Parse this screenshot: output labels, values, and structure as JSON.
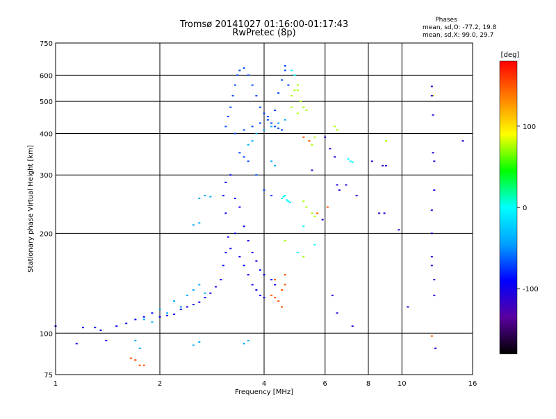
{
  "chart_data": {
    "type": "scatter",
    "title": "Tromsø 20141027 01:16:00-01:17:43",
    "subtitle": "RwPretec (8p)",
    "stats": {
      "heading": "Phases",
      "line1": "mean, sd,O: -77.2, 19.8",
      "line2": "mean, sd,X:  99.0, 29.7"
    },
    "xlabel": "Frequency [MHz]",
    "ylabel": "Stationary phase Virtual Height [km]",
    "x_scale": "log",
    "y_scale": "log",
    "xlim": [
      1,
      16
    ],
    "ylim": [
      75,
      750
    ],
    "x_ticks": [
      1,
      2,
      4,
      6,
      8,
      10,
      16
    ],
    "x_tick_labels": [
      "1",
      "2",
      "4",
      "6",
      "8",
      "10",
      "16"
    ],
    "y_ticks": [
      75,
      100,
      200,
      300,
      400,
      500,
      600,
      750
    ],
    "y_tick_labels": [
      "75",
      "100",
      "200",
      "300",
      "400",
      "500",
      "600",
      "750"
    ],
    "grid": true,
    "colorbar": {
      "label": "[deg]",
      "range": [
        -180,
        180
      ],
      "ticks": [
        -100,
        0,
        100
      ],
      "tick_labels": [
        "-100",
        "0",
        "100"
      ],
      "colormap": "rainbow",
      "colors": [
        "#000000",
        "#5a00a0",
        "#0000ff",
        "#00a0ff",
        "#00ffff",
        "#00ff00",
        "#ffff00",
        "#ff8000",
        "#ff0000"
      ]
    },
    "series": [
      {
        "phase_deg": -95,
        "points": [
          [
            1.0,
            105
          ],
          [
            1.15,
            93
          ],
          [
            1.2,
            104
          ],
          [
            1.3,
            104
          ],
          [
            1.35,
            102
          ],
          [
            1.4,
            95
          ],
          [
            1.5,
            105
          ],
          [
            1.6,
            107
          ],
          [
            1.7,
            110
          ],
          [
            1.8,
            112
          ],
          [
            1.9,
            115
          ],
          [
            2.0,
            112
          ],
          [
            2.1,
            113
          ],
          [
            2.2,
            114
          ],
          [
            2.3,
            118
          ],
          [
            2.4,
            120
          ],
          [
            2.5,
            122
          ],
          [
            2.6,
            124
          ],
          [
            2.7,
            128
          ],
          [
            2.8,
            132
          ],
          [
            2.9,
            138
          ],
          [
            3.0,
            145
          ],
          [
            3.05,
            160
          ],
          [
            3.1,
            175
          ],
          [
            3.15,
            195
          ],
          [
            3.1,
            230
          ],
          [
            3.05,
            260
          ],
          [
            3.1,
            285
          ],
          [
            3.2,
            300
          ],
          [
            3.3,
            255
          ],
          [
            3.4,
            240
          ],
          [
            3.5,
            210
          ],
          [
            3.6,
            190
          ],
          [
            3.7,
            175
          ],
          [
            3.8,
            165
          ],
          [
            3.9,
            155
          ],
          [
            4.0,
            150
          ],
          [
            4.2,
            145
          ],
          [
            3.3,
            200
          ],
          [
            3.2,
            180
          ],
          [
            3.4,
            170
          ],
          [
            3.5,
            160
          ],
          [
            3.6,
            150
          ],
          [
            3.7,
            140
          ],
          [
            3.8,
            135
          ],
          [
            3.9,
            130
          ],
          [
            4.0,
            128
          ],
          [
            4.3,
            140
          ]
        ]
      },
      {
        "phase_deg": -70,
        "points": [
          [
            3.1,
            420
          ],
          [
            3.15,
            450
          ],
          [
            3.2,
            480
          ],
          [
            3.25,
            520
          ],
          [
            3.3,
            560
          ],
          [
            3.35,
            600
          ],
          [
            3.4,
            620
          ],
          [
            3.5,
            630
          ],
          [
            3.6,
            600
          ],
          [
            3.7,
            560
          ],
          [
            3.8,
            520
          ],
          [
            3.9,
            480
          ],
          [
            4.0,
            460
          ],
          [
            4.1,
            440
          ],
          [
            4.2,
            430
          ],
          [
            4.3,
            420
          ],
          [
            4.4,
            415
          ],
          [
            4.5,
            410
          ],
          [
            3.3,
            400
          ],
          [
            3.5,
            410
          ],
          [
            3.7,
            420
          ],
          [
            3.9,
            430
          ],
          [
            4.1,
            450
          ],
          [
            4.3,
            470
          ],
          [
            4.4,
            530
          ],
          [
            4.5,
            580
          ],
          [
            4.6,
            620
          ],
          [
            3.6,
            330
          ],
          [
            3.8,
            300
          ],
          [
            4.0,
            270
          ],
          [
            4.2,
            260
          ],
          [
            3.4,
            350
          ],
          [
            3.5,
            340
          ],
          [
            4.6,
            640
          ],
          [
            4.7,
            560
          ]
        ]
      },
      {
        "phase_deg": -40,
        "points": [
          [
            1.8,
            110
          ],
          [
            2.0,
            118
          ],
          [
            2.2,
            125
          ],
          [
            2.4,
            130
          ],
          [
            2.5,
            135
          ],
          [
            2.6,
            140
          ],
          [
            2.7,
            132
          ],
          [
            2.3,
            120
          ],
          [
            2.1,
            115
          ],
          [
            1.9,
            108
          ],
          [
            2.6,
            255
          ],
          [
            2.7,
            260
          ],
          [
            2.8,
            258
          ],
          [
            2.5,
            212
          ],
          [
            2.6,
            215
          ],
          [
            3.6,
            370
          ],
          [
            3.7,
            380
          ],
          [
            3.8,
            400
          ],
          [
            4.0,
            410
          ],
          [
            4.2,
            420
          ],
          [
            4.4,
            430
          ],
          [
            4.6,
            440
          ],
          [
            4.2,
            330
          ],
          [
            4.3,
            320
          ],
          [
            1.7,
            95
          ],
          [
            1.75,
            90
          ],
          [
            2.5,
            92
          ],
          [
            2.6,
            94
          ],
          [
            3.5,
            93
          ],
          [
            3.6,
            95
          ]
        ]
      },
      {
        "phase_deg": 0,
        "points": [
          [
            4.5,
            255
          ],
          [
            4.55,
            258
          ],
          [
            4.6,
            260
          ],
          [
            4.65,
            252
          ],
          [
            4.7,
            250
          ],
          [
            4.75,
            248
          ],
          [
            7.0,
            335
          ],
          [
            7.1,
            330
          ],
          [
            7.2,
            328
          ],
          [
            4.8,
            620
          ],
          [
            4.9,
            600
          ],
          [
            5.6,
            185
          ],
          [
            5.2,
            210
          ],
          [
            5.0,
            175
          ]
        ]
      },
      {
        "phase_deg": 75,
        "points": [
          [
            4.8,
            520
          ],
          [
            4.9,
            540
          ],
          [
            5.0,
            560
          ],
          [
            5.1,
            500
          ],
          [
            5.2,
            480
          ],
          [
            5.3,
            470
          ],
          [
            4.8,
            480
          ],
          [
            5.0,
            460
          ],
          [
            5.2,
            250
          ],
          [
            5.3,
            240
          ],
          [
            5.5,
            230
          ],
          [
            5.6,
            225
          ],
          [
            5.4,
            380
          ],
          [
            5.5,
            370
          ],
          [
            5.6,
            390
          ],
          [
            6.4,
            420
          ],
          [
            6.5,
            410
          ],
          [
            5.0,
            540
          ],
          [
            5.2,
            170
          ],
          [
            4.6,
            190
          ],
          [
            9.0,
            380
          ],
          [
            12.3,
            520
          ]
        ]
      },
      {
        "phase_deg": 150,
        "points": [
          [
            1.65,
            84
          ],
          [
            1.7,
            83
          ],
          [
            1.75,
            80
          ],
          [
            1.8,
            80
          ],
          [
            4.2,
            130
          ],
          [
            4.3,
            128
          ],
          [
            4.4,
            125
          ],
          [
            4.5,
            135
          ],
          [
            4.6,
            140
          ],
          [
            4.5,
            120
          ],
          [
            4.3,
            145
          ],
          [
            4.6,
            150
          ],
          [
            5.2,
            390
          ],
          [
            5.4,
            380
          ],
          [
            5.7,
            230
          ],
          [
            6.1,
            240
          ],
          [
            12.2,
            98
          ]
        ]
      },
      {
        "phase_deg": -110,
        "points": [
          [
            6.0,
            390
          ],
          [
            6.2,
            360
          ],
          [
            6.4,
            340
          ],
          [
            6.5,
            280
          ],
          [
            6.6,
            270
          ],
          [
            6.9,
            280
          ],
          [
            7.4,
            260
          ],
          [
            8.2,
            330
          ],
          [
            8.8,
            320
          ],
          [
            9.0,
            320
          ],
          [
            8.6,
            230
          ],
          [
            8.9,
            230
          ],
          [
            9.8,
            205
          ],
          [
            12.2,
            555
          ],
          [
            12.2,
            520
          ],
          [
            12.3,
            455
          ],
          [
            12.3,
            350
          ],
          [
            12.4,
            330
          ],
          [
            12.4,
            270
          ],
          [
            12.2,
            235
          ],
          [
            12.2,
            200
          ],
          [
            12.2,
            170
          ],
          [
            12.2,
            160
          ],
          [
            12.4,
            145
          ],
          [
            12.4,
            130
          ],
          [
            12.5,
            90
          ],
          [
            15.0,
            380
          ],
          [
            10.4,
            120
          ],
          [
            6.3,
            130
          ],
          [
            6.5,
            115
          ],
          [
            7.2,
            105
          ],
          [
            5.5,
            310
          ],
          [
            5.9,
            220
          ]
        ]
      }
    ]
  }
}
